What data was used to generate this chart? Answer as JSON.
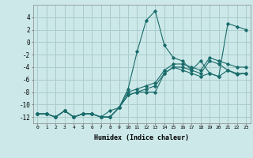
{
  "title": "",
  "xlabel": "Humidex (Indice chaleur)",
  "ylabel": "",
  "background_color": "#cce8e8",
  "grid_color": "#aacccc",
  "line_color": "#1a6b6b",
  "xlim": [
    -0.5,
    23.5
  ],
  "ylim": [
    -13,
    6
  ],
  "xticks": [
    0,
    1,
    2,
    3,
    4,
    5,
    6,
    7,
    8,
    9,
    10,
    11,
    12,
    13,
    14,
    15,
    16,
    17,
    18,
    19,
    20,
    21,
    22,
    23
  ],
  "yticks": [
    -12,
    -10,
    -8,
    -6,
    -4,
    -2,
    0,
    2,
    4
  ],
  "series": [
    [
      0,
      1,
      2,
      3,
      4,
      5,
      6,
      7,
      8,
      9,
      10,
      11,
      12,
      13,
      14,
      15,
      16,
      17,
      18,
      19,
      20,
      21,
      22,
      23
    ],
    [
      -11.5,
      -11.5,
      -12,
      -11,
      -12,
      -11.5,
      -11.5,
      -12,
      -12,
      -10.5,
      -7.5,
      -1.5,
      3.5,
      5,
      -0.5,
      -2.5,
      -3,
      -4.5,
      -3,
      -5,
      -5.5,
      3,
      2.5,
      2
    ],
    [
      -11.5,
      -11.5,
      -12,
      -11,
      -12,
      -11.5,
      -11.5,
      -12,
      -12,
      -10.5,
      -8.5,
      -8,
      -8,
      -8,
      -5,
      -4,
      -4.5,
      -5,
      -5.5,
      -5,
      -5.5,
      -4.5,
      -5.2,
      -5
    ],
    [
      -11.5,
      -11.5,
      -12,
      -11,
      -12,
      -11.5,
      -11.5,
      -12,
      -12,
      -10.5,
      -8.5,
      -8,
      -7.5,
      -7,
      -5,
      -4,
      -4,
      -4.5,
      -5,
      -3,
      -3.5,
      -4.5,
      -5,
      -5
    ],
    [
      -11.5,
      -11.5,
      -12,
      -11,
      -12,
      -11.5,
      -11.5,
      -12,
      -11,
      -10.5,
      -8,
      -7.5,
      -7,
      -6.5,
      -4.5,
      -3.5,
      -3.5,
      -4,
      -4.5,
      -2.5,
      -3,
      -3.5,
      -4,
      -4
    ]
  ]
}
